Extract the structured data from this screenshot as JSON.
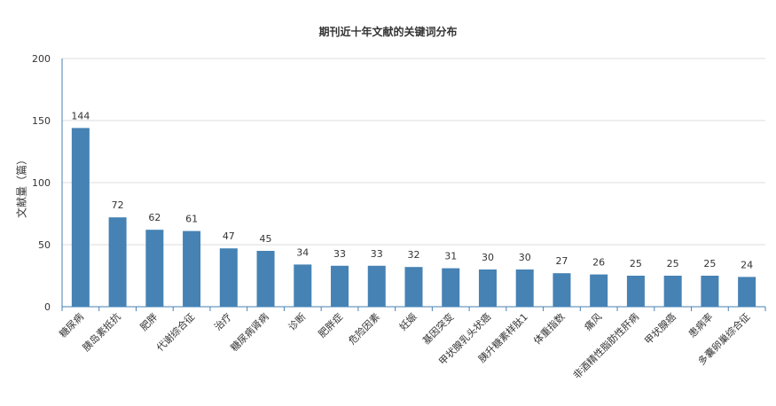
{
  "chart_data": {
    "type": "bar",
    "title": "期刊近十年文献的关键词分布",
    "xlabel": "",
    "ylabel": "文献量（篇）",
    "ylim": [
      0,
      200
    ],
    "yticks": [
      0,
      50,
      100,
      150,
      200
    ],
    "grid": true,
    "bar_color": "#4682b4",
    "axis_color": "#4682b4",
    "categories": [
      "糖尿病",
      "胰岛素抵抗",
      "肥胖",
      "代谢综合征",
      "治疗",
      "糖尿病肾病",
      "诊断",
      "肥胖症",
      "危险因素",
      "妊娠",
      "基因突变",
      "甲状腺乳头状癌",
      "胰升糖素样肽1",
      "体重指数",
      "痛风",
      "非酒精性脂肪性肝病",
      "甲状腺癌",
      "患病率",
      "多囊卵巢综合征"
    ],
    "values": [
      144,
      72,
      62,
      61,
      47,
      45,
      34,
      33,
      33,
      32,
      31,
      30,
      30,
      27,
      26,
      25,
      25,
      25,
      24
    ]
  }
}
